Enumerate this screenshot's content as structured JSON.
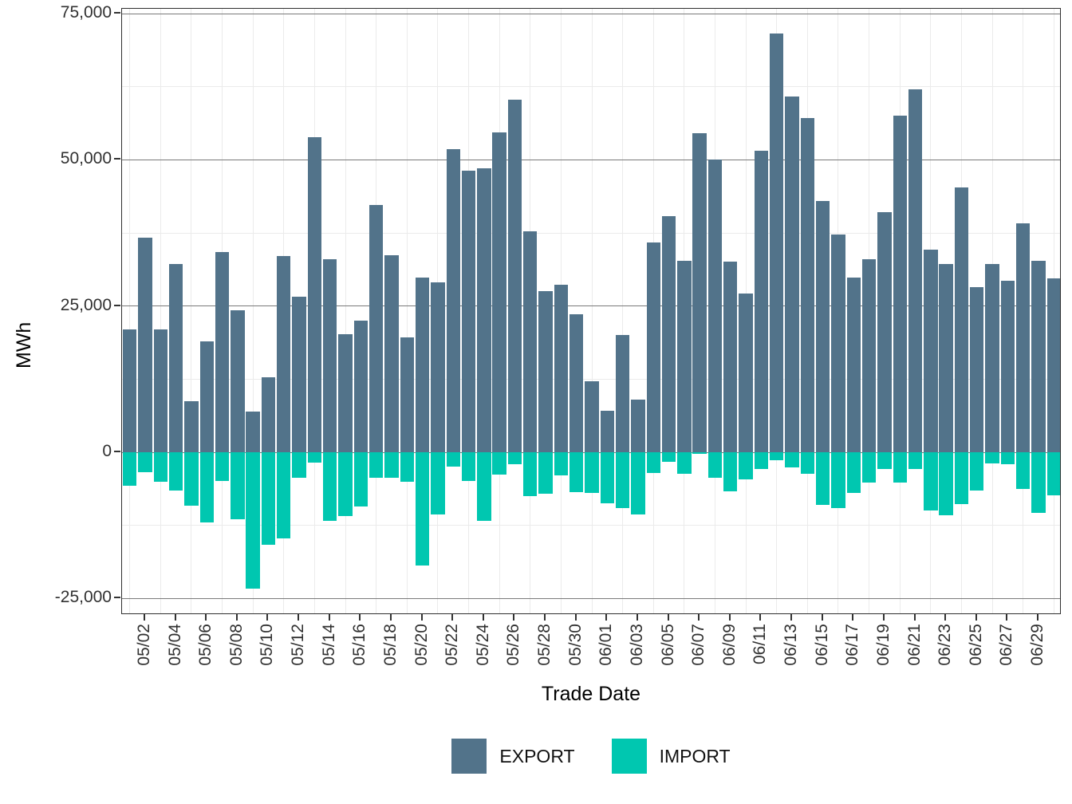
{
  "figure": {
    "y_axis_title": "MWh",
    "x_axis_title": "Trade Date"
  },
  "legend": {
    "items": [
      {
        "label": "EXPORT",
        "color": "#52738a"
      },
      {
        "label": "IMPORT",
        "color": "#00c7b0"
      }
    ],
    "position": "bottom"
  },
  "colors": {
    "export_bar": "#52738a",
    "import_bar": "#00c7b0",
    "major_grid": "#7a7a7a",
    "minor_grid": "#ebebeb",
    "panel_border": "#2f2f2f",
    "axis_text": "#313131"
  },
  "chart_data": {
    "type": "bar",
    "title": "",
    "xlabel": "Trade Date",
    "ylabel": "MWh",
    "ylim": [
      -27800,
      75900
    ],
    "grid": {
      "major_y_interval": 25000,
      "minor_y_interval": 12500,
      "vertical_minor_between_ticks": true
    },
    "legend_position": "bottom",
    "bar_layout": "diverging (EXPORT positive, IMPORT negative, shared baseline 0)",
    "y_ticks": [
      {
        "label": "75,000",
        "value": 75000
      },
      {
        "label": "50,000",
        "value": 50000
      },
      {
        "label": "25,000",
        "value": 25000
      },
      {
        "label": "0",
        "value": 0
      },
      {
        "label": "-25,000",
        "value": -25000
      }
    ],
    "y_minor_ticks": [
      62500,
      37500,
      12500,
      -12500
    ],
    "x_tick_labels": [
      "05/02",
      "05/04",
      "05/06",
      "05/08",
      "05/10",
      "05/12",
      "05/14",
      "05/16",
      "05/18",
      "05/20",
      "05/22",
      "05/24",
      "05/26",
      "05/28",
      "05/30",
      "06/01",
      "06/03",
      "06/05",
      "06/07",
      "06/09",
      "06/11",
      "06/13",
      "06/15",
      "06/17",
      "06/19",
      "06/21",
      "06/23",
      "06/25",
      "06/27",
      "06/29"
    ],
    "x": [
      "05/01",
      "05/02",
      "05/03",
      "05/04",
      "05/05",
      "05/06",
      "05/07",
      "05/08",
      "05/09",
      "05/10",
      "05/11",
      "05/12",
      "05/13",
      "05/14",
      "05/15",
      "05/16",
      "05/17",
      "05/18",
      "05/19",
      "05/20",
      "05/21",
      "05/22",
      "05/23",
      "05/24",
      "05/25",
      "05/26",
      "05/27",
      "05/28",
      "05/29",
      "05/30",
      "05/31",
      "06/01",
      "06/02",
      "06/03",
      "06/04",
      "06/05",
      "06/06",
      "06/07",
      "06/08",
      "06/09",
      "06/10",
      "06/11",
      "06/12",
      "06/13",
      "06/14",
      "06/15",
      "06/16",
      "06/17",
      "06/18",
      "06/19",
      "06/20",
      "06/21",
      "06/22",
      "06/23",
      "06/24",
      "06/25",
      "06/26",
      "06/27",
      "06/28",
      "06/29",
      "06/30"
    ],
    "series": [
      {
        "name": "EXPORT",
        "color": "#52738a",
        "values": [
          21000,
          36700,
          21000,
          32200,
          8700,
          18900,
          34200,
          24300,
          6900,
          12800,
          33600,
          26600,
          53900,
          33000,
          20200,
          22500,
          42300,
          33700,
          19600,
          29900,
          29100,
          51800,
          48100,
          48500,
          54700,
          60300,
          37800,
          27600,
          28600,
          23600,
          12100,
          7100,
          20000,
          9000,
          35900,
          40400,
          32700,
          54500,
          50000,
          32600,
          27100,
          51600,
          71600,
          60800,
          57200,
          42900,
          37300,
          29900,
          33000,
          41100,
          57600,
          62000,
          34700,
          32200,
          45300,
          28300,
          32200,
          29300,
          39200,
          32800,
          29700
        ]
      },
      {
        "name": "IMPORT",
        "color": "#00c7b0",
        "values": [
          -5700,
          -3400,
          -5100,
          -6500,
          -9100,
          -12000,
          -4900,
          -11400,
          -23300,
          -15800,
          -14700,
          -4400,
          -1800,
          -11700,
          -10900,
          -9300,
          -4400,
          -4300,
          -5000,
          -19400,
          -10600,
          -2400,
          -4900,
          -11700,
          -3800,
          -2100,
          -7500,
          -7100,
          -4000,
          -6800,
          -6900,
          -8700,
          -9600,
          -10700,
          -3600,
          -1700,
          -3700,
          -300,
          -4400,
          -6700,
          -4600,
          -2800,
          -1300,
          -2600,
          -3700,
          -9000,
          -9600,
          -6900,
          -5200,
          -2800,
          -5200,
          -2800,
          -9900,
          -10800,
          -8900,
          -6500,
          -1900,
          -2000,
          -6300,
          -10300,
          -7300
        ]
      }
    ]
  }
}
